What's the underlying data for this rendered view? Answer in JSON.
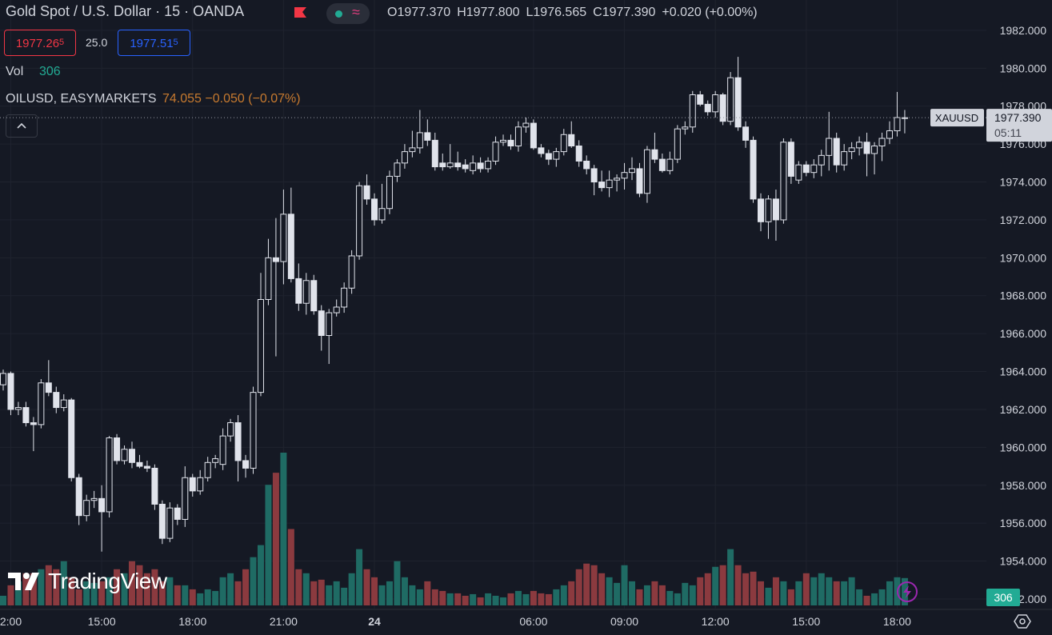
{
  "header": {
    "title": "Gold Spot / U.S. Dollar · 15 · OANDA",
    "ohlc": [
      {
        "key": "O",
        "value": "1977.370"
      },
      {
        "key": "H",
        "value": "1977.800"
      },
      {
        "key": "L",
        "value": "1976.565"
      },
      {
        "key": "C",
        "value": "1977.390"
      }
    ],
    "change": "+0.020 (+0.00%)",
    "bid": "1977.26",
    "bid_pipette": "5",
    "spread": "25.0",
    "ask": "1977.51",
    "ask_pipette": "5",
    "volume_label": "Vol",
    "volume_value": "306",
    "compare": {
      "symbol": "OILUSD, EASYMARKETS",
      "price": "74.055",
      "change": "−0.050",
      "change_pct": "(−0.07%)"
    },
    "brand": "TradingView"
  },
  "chart_data": {
    "type": "candlestick",
    "symbol": "XAUUSD",
    "countdown": "05:11",
    "last_price": {
      "value": 1977.39,
      "label": "1977.390"
    },
    "categories": [
      null,
      "2:00",
      null,
      null,
      null,
      null,
      null,
      null,
      null,
      null,
      null,
      null,
      null,
      "15:00",
      null,
      null,
      null,
      null,
      null,
      null,
      null,
      null,
      null,
      null,
      null,
      "18:00",
      null,
      null,
      null,
      null,
      null,
      null,
      null,
      null,
      null,
      null,
      null,
      "21:00",
      null,
      null,
      null,
      null,
      null,
      null,
      null,
      null,
      null,
      null,
      null,
      "24",
      null,
      null,
      null,
      null,
      null,
      null,
      null,
      null,
      null,
      null,
      null,
      null,
      null,
      null,
      null,
      null,
      null,
      null,
      null,
      null,
      "06:00",
      null,
      null,
      null,
      null,
      null,
      null,
      null,
      null,
      null,
      null,
      null,
      "09:00",
      null,
      null,
      null,
      null,
      null,
      null,
      null,
      null,
      null,
      null,
      null,
      "12:00",
      null,
      null,
      null,
      null,
      null,
      null,
      null,
      null,
      null,
      null,
      null,
      "15:00",
      null,
      null,
      null,
      null,
      null,
      null,
      null,
      null,
      null,
      null,
      null,
      "18:00",
      null
    ],
    "open": [
      1963.3,
      1963.9,
      1962.0,
      1962.1,
      1961.3,
      1961.2,
      1963.4,
      1962.9,
      1962.1,
      1962.5,
      1958.4,
      1956.4,
      1957.2,
      1957.3,
      1956.6,
      1960.5,
      1959.3,
      1959.9,
      1959.2,
      1959.0,
      1958.9,
      1957.0,
      1955.2,
      1956.8,
      1956.2,
      1958.4,
      1957.7,
      1958.4,
      1959.2,
      1959.1,
      1960.6,
      1961.3,
      1959.3,
      1958.9,
      1962.9,
      1967.8,
      1970.0,
      1969.8,
      1972.3,
      1968.9,
      1967.6,
      1968.8,
      1967.2,
      1965.9,
      1967.1,
      1967.4,
      1968.4,
      1970.1,
      1973.8,
      1973.1,
      1972.0,
      1972.6,
      1974.3,
      1975.0,
      1975.6,
      1975.8,
      1976.6,
      1976.2,
      1975.0,
      1974.8,
      1975.0,
      1974.9,
      1974.6,
      1975.0,
      1974.7,
      1975.1,
      1976.1,
      1976.2,
      1975.9,
      1976.9,
      1977.1,
      1975.8,
      1975.5,
      1975.2,
      1975.6,
      1976.5,
      1975.9,
      1975.1,
      1974.7,
      1974.0,
      1973.7,
      1974.1,
      1974.2,
      1974.5,
      1974.7,
      1973.4,
      1975.7,
      1975.2,
      1974.6,
      1975.2,
      1976.8,
      1976.9,
      1978.6,
      1978.1,
      1977.7,
      1978.6,
      1977.2,
      1979.5,
      1976.9,
      1976.2,
      1973.1,
      1971.9,
      1973.1,
      1972.0,
      1976.1,
      1974.1,
      1974.9,
      1974.5,
      1974.9,
      1975.4,
      1976.3,
      1974.9,
      1975.6,
      1975.8,
      1976.1,
      1975.5,
      1975.9,
      1976.3,
      1976.7,
      1977.37
    ],
    "high": [
      1964.1,
      1964.0,
      1962.4,
      1962.4,
      1961.6,
      1963.6,
      1964.6,
      1963.2,
      1962.8,
      1962.6,
      1958.6,
      1957.5,
      1957.7,
      1958.0,
      1960.6,
      1960.7,
      1960.1,
      1960.3,
      1959.6,
      1959.3,
      1959.1,
      1957.2,
      1957.1,
      1957.0,
      1959.0,
      1958.6,
      1958.8,
      1959.5,
      1959.6,
      1961.0,
      1961.5,
      1961.7,
      1959.6,
      1963.2,
      1969.2,
      1971.0,
      1972.1,
      1973.6,
      1973.7,
      1969.7,
      1969.2,
      1969.1,
      1967.5,
      1967.3,
      1967.8,
      1968.7,
      1970.4,
      1974.0,
      1974.4,
      1973.4,
      1973.9,
      1974.6,
      1975.2,
      1976.0,
      1976.7,
      1977.8,
      1977.3,
      1976.6,
      1975.5,
      1976.0,
      1975.6,
      1975.2,
      1975.4,
      1975.3,
      1975.3,
      1976.4,
      1976.5,
      1976.5,
      1977.2,
      1977.4,
      1977.3,
      1976.0,
      1975.7,
      1975.8,
      1976.8,
      1977.2,
      1976.2,
      1975.4,
      1974.9,
      1974.6,
      1974.6,
      1974.4,
      1975.0,
      1975.3,
      1975.0,
      1975.9,
      1976.6,
      1975.5,
      1975.6,
      1977.0,
      1977.2,
      1978.8,
      1978.8,
      1978.3,
      1978.8,
      1978.7,
      1979.8,
      1980.6,
      1977.2,
      1976.4,
      1973.4,
      1973.3,
      1973.6,
      1976.3,
      1976.3,
      1975.1,
      1975.1,
      1975.2,
      1975.7,
      1977.7,
      1976.6,
      1976.0,
      1976.1,
      1976.4,
      1976.6,
      1976.1,
      1976.6,
      1977.2,
      1978.75,
      1977.8
    ],
    "low": [
      1963.0,
      1961.7,
      1961.7,
      1961.1,
      1959.8,
      1961.0,
      1962.7,
      1961.8,
      1961.9,
      1958.2,
      1955.9,
      1956.1,
      1956.8,
      1954.5,
      1956.3,
      1959.1,
      1959.1,
      1958.9,
      1958.9,
      1958.7,
      1956.7,
      1954.9,
      1955.0,
      1955.9,
      1955.8,
      1957.4,
      1957.5,
      1958.2,
      1958.9,
      1958.8,
      1960.3,
      1958.2,
      1958.4,
      1958.6,
      1962.7,
      1967.5,
      1964.8,
      1968.6,
      1968.7,
      1967.2,
      1967.0,
      1967.0,
      1965.1,
      1964.4,
      1966.9,
      1967.1,
      1968.1,
      1969.9,
      1972.8,
      1971.7,
      1971.8,
      1972.3,
      1974.0,
      1974.7,
      1975.3,
      1975.5,
      1975.9,
      1974.6,
      1974.6,
      1974.7,
      1974.6,
      1974.5,
      1974.4,
      1974.5,
      1974.5,
      1974.9,
      1975.9,
      1975.7,
      1975.6,
      1976.6,
      1975.7,
      1975.3,
      1974.9,
      1974.8,
      1975.4,
      1975.8,
      1974.8,
      1974.4,
      1973.3,
      1973.5,
      1973.2,
      1973.5,
      1973.6,
      1974.1,
      1973.2,
      1972.9,
      1975.0,
      1974.5,
      1974.4,
      1975.0,
      1976.5,
      1976.6,
      1978.0,
      1977.5,
      1977.4,
      1977.0,
      1977.0,
      1976.7,
      1975.8,
      1972.9,
      1971.4,
      1971.0,
      1970.9,
      1971.8,
      1973.9,
      1973.9,
      1974.3,
      1974.2,
      1974.3,
      1974.6,
      1974.5,
      1974.6,
      1975.2,
      1975.4,
      1974.3,
      1974.4,
      1975.1,
      1976.0,
      1976.4,
      1976.565
    ],
    "close": [
      1963.9,
      1962.0,
      1962.1,
      1961.3,
      1961.2,
      1963.4,
      1962.9,
      1962.1,
      1962.5,
      1958.4,
      1956.4,
      1957.2,
      1957.3,
      1956.6,
      1960.5,
      1959.3,
      1959.9,
      1959.2,
      1959.0,
      1958.9,
      1957.0,
      1955.2,
      1956.8,
      1956.2,
      1958.4,
      1957.7,
      1958.4,
      1959.2,
      1959.4,
      1960.6,
      1961.3,
      1959.3,
      1958.9,
      1962.9,
      1967.8,
      1970.0,
      1969.8,
      1972.3,
      1968.9,
      1967.6,
      1968.8,
      1967.2,
      1965.9,
      1967.1,
      1967.4,
      1968.4,
      1970.1,
      1973.8,
      1973.1,
      1972.0,
      1972.6,
      1974.3,
      1975.0,
      1975.6,
      1975.8,
      1976.6,
      1976.2,
      1974.8,
      1974.8,
      1975.0,
      1974.8,
      1974.7,
      1975.0,
      1974.7,
      1975.1,
      1976.1,
      1976.2,
      1975.9,
      1976.9,
      1977.1,
      1975.8,
      1975.5,
      1975.2,
      1975.6,
      1976.5,
      1975.9,
      1975.1,
      1974.7,
      1974.0,
      1973.7,
      1974.1,
      1974.2,
      1974.5,
      1974.7,
      1973.4,
      1975.7,
      1975.2,
      1974.6,
      1975.2,
      1976.8,
      1976.9,
      1978.6,
      1978.1,
      1977.7,
      1978.6,
      1977.2,
      1979.5,
      1976.9,
      1976.2,
      1973.1,
      1971.9,
      1973.1,
      1972.0,
      1976.1,
      1974.3,
      1974.9,
      1974.5,
      1974.9,
      1975.4,
      1976.3,
      1974.9,
      1975.6,
      1975.8,
      1976.1,
      1975.5,
      1975.9,
      1976.3,
      1976.7,
      1977.4,
      1977.39
    ],
    "volume": [
      108,
      225,
      270,
      360,
      360,
      405,
      450,
      405,
      495,
      315,
      180,
      270,
      252,
      270,
      315,
      405,
      360,
      495,
      450,
      360,
      405,
      270,
      315,
      225,
      225,
      180,
      135,
      180,
      162,
      315,
      360,
      270,
      405,
      540,
      675,
      1350,
      1485,
      1710,
      855,
      405,
      360,
      270,
      288,
      225,
      270,
      198,
      360,
      630,
      405,
      315,
      225,
      270,
      495,
      315,
      225,
      180,
      270,
      180,
      162,
      135,
      135,
      108,
      126,
      90,
      135,
      108,
      90,
      135,
      162,
      126,
      162,
      135,
      126,
      180,
      225,
      270,
      405,
      468,
      450,
      360,
      315,
      252,
      450,
      270,
      180,
      225,
      270,
      225,
      162,
      135,
      252,
      225,
      315,
      360,
      432,
      450,
      630,
      450,
      360,
      378,
      270,
      198,
      315,
      270,
      180,
      270,
      360,
      315,
      360,
      315,
      270,
      270,
      315,
      180,
      108,
      135,
      180,
      270,
      315,
      306
    ],
    "ylim": [
      1951.45,
      1983.6
    ],
    "yticks": [
      {
        "value": 1952,
        "label": "1952.000"
      },
      {
        "value": 1954,
        "label": "1954.000"
      },
      {
        "value": 1956,
        "label": "1956.000"
      },
      {
        "value": 1958,
        "label": "1958.000"
      },
      {
        "value": 1960,
        "label": "1960.000"
      },
      {
        "value": 1962,
        "label": "1962.000"
      },
      {
        "value": 1964,
        "label": "1964.000"
      },
      {
        "value": 1966,
        "label": "1966.000"
      },
      {
        "value": 1968,
        "label": "1968.000"
      },
      {
        "value": 1970,
        "label": "1970.000"
      },
      {
        "value": 1972,
        "label": "1972.000"
      },
      {
        "value": 1974,
        "label": "1974.000"
      },
      {
        "value": 1976,
        "label": "1976.000"
      },
      {
        "value": 1978,
        "label": "1978.000"
      },
      {
        "value": 1980,
        "label": "1980.000"
      },
      {
        "value": 1982,
        "label": "1982.000"
      }
    ],
    "grid": true,
    "candle_color": "#e0e3eb",
    "up_volume_color": "#1f6b64",
    "down_volume_color": "#8b3a3f"
  }
}
